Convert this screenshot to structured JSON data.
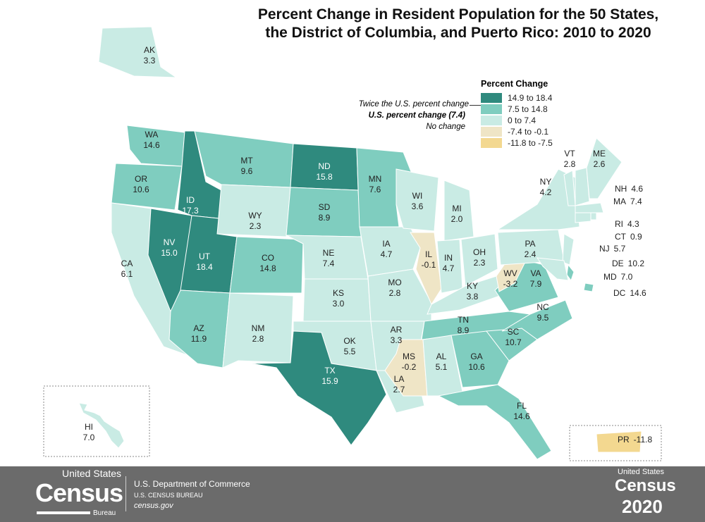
{
  "title": "Percent Change in Resident Population for the 50 States, the District of Columbia, and Puerto Rico: 2010 to 2020",
  "title_lines": [
    "Percent Change in Resident Population for the 50 States,",
    "the District of Columbia, and Puerto Rico: 2010 to 2020"
  ],
  "legend": {
    "title": "Percent Change",
    "classes": [
      {
        "label": "14.9 to 18.4",
        "color": "#2f8a7e",
        "min": 14.9,
        "max": 18.4
      },
      {
        "label": "7.5 to 14.8",
        "color": "#7fcdbf",
        "min": 7.5,
        "max": 14.8
      },
      {
        "label": "0 to 7.4",
        "color": "#c9ebe4",
        "min": 0,
        "max": 7.4
      },
      {
        "label": "-7.4 to -0.1",
        "color": "#efe5c6",
        "min": -7.4,
        "max": -0.1
      },
      {
        "label": "-11.8 to -7.5",
        "color": "#f3d890",
        "min": -11.8,
        "max": -7.5
      }
    ],
    "notes": [
      "Twice the U.S. percent change",
      "U.S. percent change (7.4)",
      "No change"
    ]
  },
  "states": [
    {
      "abbr": "AK",
      "value": 3.3
    },
    {
      "abbr": "WA",
      "value": 14.6
    },
    {
      "abbr": "OR",
      "value": 10.6
    },
    {
      "abbr": "CA",
      "value": 6.1
    },
    {
      "abbr": "NV",
      "value": 15.0
    },
    {
      "abbr": "ID",
      "value": 17.3
    },
    {
      "abbr": "MT",
      "value": 9.6
    },
    {
      "abbr": "WY",
      "value": 2.3
    },
    {
      "abbr": "UT",
      "value": 18.4
    },
    {
      "abbr": "CO",
      "value": 14.8
    },
    {
      "abbr": "AZ",
      "value": 11.9
    },
    {
      "abbr": "NM",
      "value": 2.8
    },
    {
      "abbr": "ND",
      "value": 15.8
    },
    {
      "abbr": "SD",
      "value": 8.9
    },
    {
      "abbr": "NE",
      "value": 7.4
    },
    {
      "abbr": "KS",
      "value": 3.0
    },
    {
      "abbr": "OK",
      "value": 5.5
    },
    {
      "abbr": "TX",
      "value": 15.9
    },
    {
      "abbr": "MN",
      "value": 7.6
    },
    {
      "abbr": "IA",
      "value": 4.7
    },
    {
      "abbr": "MO",
      "value": 2.8
    },
    {
      "abbr": "AR",
      "value": 3.3
    },
    {
      "abbr": "LA",
      "value": 2.7
    },
    {
      "abbr": "WI",
      "value": 3.6
    },
    {
      "abbr": "IL",
      "value": -0.1
    },
    {
      "abbr": "MI",
      "value": 2.0
    },
    {
      "abbr": "IN",
      "value": 4.7
    },
    {
      "abbr": "OH",
      "value": 2.3
    },
    {
      "abbr": "KY",
      "value": 3.8
    },
    {
      "abbr": "TN",
      "value": 8.9
    },
    {
      "abbr": "MS",
      "value": -0.2
    },
    {
      "abbr": "AL",
      "value": 5.1
    },
    {
      "abbr": "GA",
      "value": 10.6
    },
    {
      "abbr": "FL",
      "value": 14.6
    },
    {
      "abbr": "SC",
      "value": 10.7
    },
    {
      "abbr": "NC",
      "value": 9.5
    },
    {
      "abbr": "VA",
      "value": 7.9
    },
    {
      "abbr": "WV",
      "value": -3.2
    },
    {
      "abbr": "PA",
      "value": 2.4
    },
    {
      "abbr": "NY",
      "value": 4.2
    },
    {
      "abbr": "VT",
      "value": 2.8
    },
    {
      "abbr": "NH",
      "value": 4.6
    },
    {
      "abbr": "ME",
      "value": 2.6
    },
    {
      "abbr": "MA",
      "value": 7.4
    },
    {
      "abbr": "RI",
      "value": 4.3
    },
    {
      "abbr": "CT",
      "value": 0.9
    },
    {
      "abbr": "NJ",
      "value": 5.7
    },
    {
      "abbr": "DE",
      "value": 10.2
    },
    {
      "abbr": "MD",
      "value": 7.0
    },
    {
      "abbr": "DC",
      "value": 14.6
    },
    {
      "abbr": "HI",
      "value": 7.0
    },
    {
      "abbr": "PR",
      "value": -11.8
    }
  ],
  "footer": {
    "logo_top": "United States",
    "logo_main": "Census",
    "logo_sub": "Bureau",
    "dept": "U.S. Department of Commerce",
    "bureau": "U.S. CENSUS BUREAU",
    "site": "census.gov",
    "right_top": "United States",
    "right_main": "Census",
    "right_year": "2020"
  }
}
